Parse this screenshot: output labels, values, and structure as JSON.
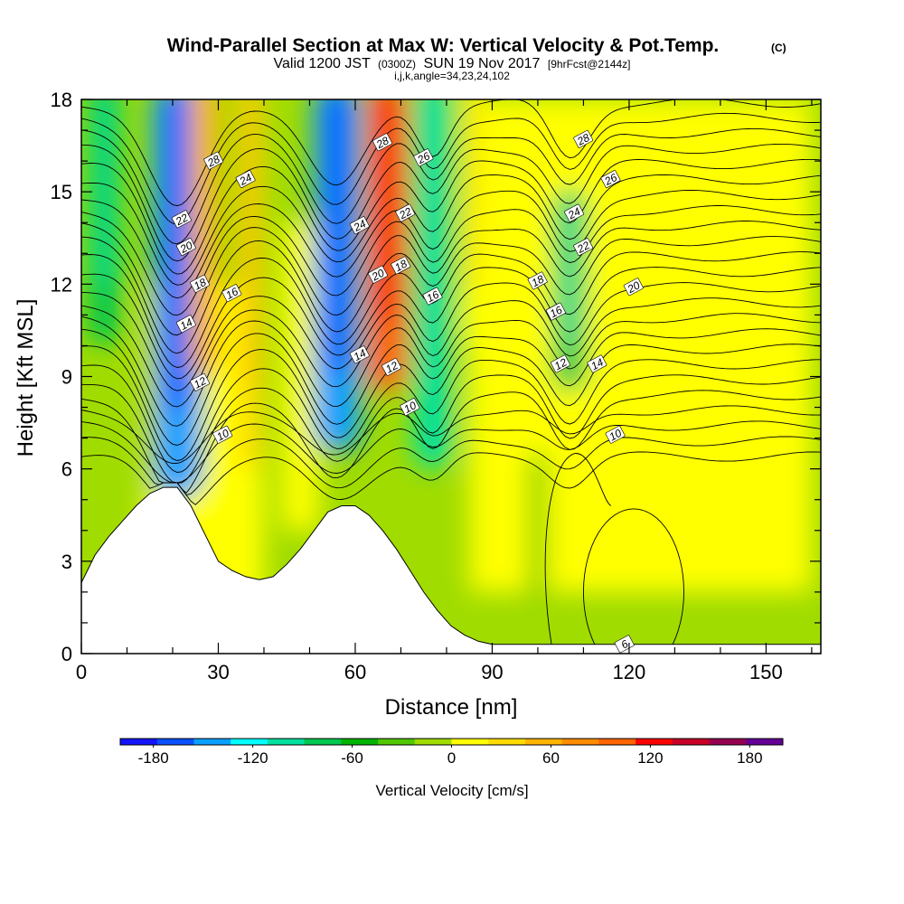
{
  "title": {
    "main": "Wind-Parallel Section at Max W: Vertical Velocity & Pot.Temp.",
    "copyright": "(C)",
    "valid_prefix": "Valid 1200 JST",
    "valid_z": "(0300Z)",
    "valid_date": "SUN 19 Nov 2017",
    "forecast": "[9hrFcst@2144z]",
    "indices": "i,j,k,angle=34,23,24,102"
  },
  "chart_data": {
    "type": "heatmap",
    "xlabel": "Distance [nm]",
    "ylabel": "Height [Kft MSL]",
    "xlim": [
      0,
      162
    ],
    "ylim": [
      0,
      18
    ],
    "x_ticks": [
      "0",
      "30",
      "60",
      "90",
      "120",
      "150"
    ],
    "y_ticks": [
      "0",
      "3",
      "6",
      "9",
      "12",
      "15",
      "18"
    ],
    "colorbar": {
      "label": "Vertical Velocity [cm/s]",
      "tick_labels": [
        "-180",
        "-120",
        "-60",
        "0",
        "60",
        "120",
        "180"
      ],
      "min": -200,
      "max": 200,
      "colors": [
        "#1414ff",
        "#0a50ff",
        "#0aa0ff",
        "#00ffff",
        "#00e0a0",
        "#00c850",
        "#00b400",
        "#50c800",
        "#a0dc00",
        "#ffff00",
        "#ffdc00",
        "#ffb400",
        "#ff8c00",
        "#ff6400",
        "#ff0000",
        "#c80028",
        "#960050",
        "#640096"
      ]
    },
    "velocity_features": [
      {
        "x": 21,
        "y_bottom": 5.0,
        "y_top": 18,
        "value": -150
      },
      {
        "x": 27,
        "y_bottom": 9.0,
        "y_top": 18,
        "value": 45
      },
      {
        "x": 37,
        "y_bottom": 6.0,
        "y_top": 18,
        "value": 30
      },
      {
        "x": 56,
        "y_bottom": 6.5,
        "y_top": 18,
        "value": -140
      },
      {
        "x": 67,
        "y_bottom": 8.5,
        "y_top": 18,
        "value": 95
      },
      {
        "x": 77,
        "y_bottom": 6.0,
        "y_top": 18,
        "value": -90
      },
      {
        "x": 86,
        "y_bottom": 10.0,
        "y_top": 18,
        "value": 20
      },
      {
        "x": 107,
        "y_bottom": 8.5,
        "y_top": 14.5,
        "value": -75
      },
      {
        "x": 100,
        "y_bottom": 0.3,
        "y_top": 6.0,
        "value": -8
      },
      {
        "x": 5,
        "y_bottom": 10.0,
        "y_top": 18,
        "value": -70
      }
    ],
    "theta_contours": {
      "levels": [
        6,
        8,
        10,
        12,
        14,
        16,
        18,
        20,
        22,
        24,
        26,
        28
      ],
      "labels": [
        {
          "text": "28",
          "x": 29,
          "y": 16.0
        },
        {
          "text": "24",
          "x": 36,
          "y": 15.4
        },
        {
          "text": "22",
          "x": 22,
          "y": 14.1
        },
        {
          "text": "20",
          "x": 23,
          "y": 13.2
        },
        {
          "text": "18",
          "x": 26,
          "y": 12.0
        },
        {
          "text": "16",
          "x": 33,
          "y": 11.7
        },
        {
          "text": "14",
          "x": 23,
          "y": 10.7
        },
        {
          "text": "12",
          "x": 26,
          "y": 8.8
        },
        {
          "text": "10",
          "x": 31,
          "y": 7.1
        },
        {
          "text": "28",
          "x": 66,
          "y": 16.6
        },
        {
          "text": "26",
          "x": 75,
          "y": 16.1
        },
        {
          "text": "24",
          "x": 61,
          "y": 13.9
        },
        {
          "text": "22",
          "x": 71,
          "y": 14.3
        },
        {
          "text": "20",
          "x": 65,
          "y": 12.3
        },
        {
          "text": "18",
          "x": 70,
          "y": 12.6
        },
        {
          "text": "16",
          "x": 77,
          "y": 11.6
        },
        {
          "text": "14",
          "x": 61,
          "y": 9.7
        },
        {
          "text": "12",
          "x": 68,
          "y": 9.3
        },
        {
          "text": "10",
          "x": 72,
          "y": 8.0
        },
        {
          "text": "28",
          "x": 110,
          "y": 16.7
        },
        {
          "text": "26",
          "x": 116,
          "y": 15.4
        },
        {
          "text": "24",
          "x": 108,
          "y": 14.3
        },
        {
          "text": "22",
          "x": 110,
          "y": 13.2
        },
        {
          "text": "18",
          "x": 100,
          "y": 12.1
        },
        {
          "text": "20",
          "x": 121,
          "y": 11.9
        },
        {
          "text": "16",
          "x": 104,
          "y": 11.1
        },
        {
          "text": "12",
          "x": 105,
          "y": 9.4
        },
        {
          "text": "14",
          "x": 113,
          "y": 9.4
        },
        {
          "text": "10",
          "x": 117,
          "y": 7.1
        },
        {
          "text": "6",
          "x": 119,
          "y": 0.3
        }
      ]
    },
    "terrain_kft": [
      [
        0,
        2.3
      ],
      [
        3,
        3.2
      ],
      [
        6,
        3.8
      ],
      [
        9,
        4.3
      ],
      [
        12,
        4.8
      ],
      [
        15,
        5.2
      ],
      [
        18,
        5.4
      ],
      [
        21,
        5.4
      ],
      [
        24,
        4.8
      ],
      [
        27,
        3.9
      ],
      [
        30,
        3.0
      ],
      [
        33,
        2.7
      ],
      [
        36,
        2.5
      ],
      [
        39,
        2.4
      ],
      [
        42,
        2.5
      ],
      [
        45,
        2.9
      ],
      [
        48,
        3.4
      ],
      [
        51,
        4.0
      ],
      [
        54,
        4.6
      ],
      [
        57,
        4.8
      ],
      [
        60,
        4.8
      ],
      [
        63,
        4.5
      ],
      [
        66,
        4.0
      ],
      [
        69,
        3.4
      ],
      [
        72,
        2.7
      ],
      [
        75,
        2.0
      ],
      [
        78,
        1.4
      ],
      [
        81,
        0.9
      ],
      [
        84,
        0.6
      ],
      [
        87,
        0.4
      ],
      [
        90,
        0.3
      ],
      [
        162,
        0.3
      ]
    ]
  }
}
